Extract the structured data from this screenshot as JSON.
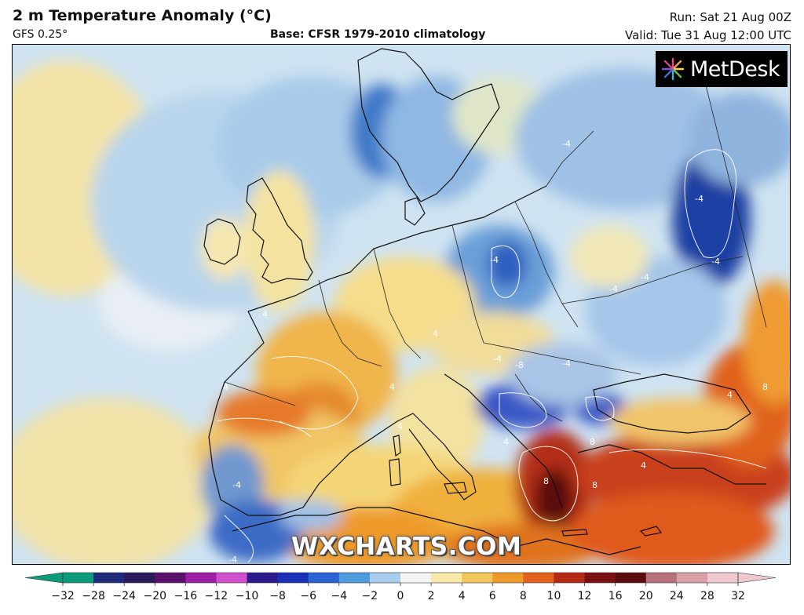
{
  "header": {
    "title": "2 m Temperature Anomaly (°C)",
    "model": "GFS 0.25°",
    "base": "Base: CFSR 1979-2010 climatology",
    "run": "Run: Sat 21 Aug 00Z",
    "valid": "Valid: Tue 31 Aug 12:00 UTC"
  },
  "logo": {
    "text": "MetDesk"
  },
  "watermark": {
    "text": "WXCHARTS.COM"
  },
  "map": {
    "contour_labels": [
      {
        "text": "-4"
      },
      {
        "text": "-4"
      },
      {
        "text": "-4"
      },
      {
        "text": "-4"
      },
      {
        "text": "-4"
      },
      {
        "text": "-4"
      },
      {
        "text": "-4"
      },
      {
        "text": "-4"
      },
      {
        "text": "-4"
      },
      {
        "text": "-4"
      },
      {
        "text": "-8"
      },
      {
        "text": "4"
      },
      {
        "text": "4"
      },
      {
        "text": "4"
      },
      {
        "text": "4"
      },
      {
        "text": "4"
      },
      {
        "text": "4"
      },
      {
        "text": "4"
      },
      {
        "text": "4"
      },
      {
        "text": "8"
      },
      {
        "text": "8"
      },
      {
        "text": "8"
      },
      {
        "text": "8"
      }
    ]
  },
  "colorbar": {
    "ticks": [
      "−32",
      "−28",
      "−24",
      "−20",
      "−16",
      "−12",
      "−10",
      "−8",
      "−6",
      "−4",
      "−2",
      "0",
      "2",
      "4",
      "6",
      "8",
      "10",
      "12",
      "16",
      "20",
      "24",
      "28",
      "32"
    ],
    "colors": [
      "#0c9b7a",
      "#1e2a7a",
      "#2a1a5c",
      "#5a0f6a",
      "#9c1fa6",
      "#d14fcf",
      "#2a1a8c",
      "#1a2fb8",
      "#2a63d6",
      "#4f9be0",
      "#a8cdee",
      "#f4f4f4",
      "#f7e9a8",
      "#f3c55a",
      "#ee9a2a",
      "#e0621c",
      "#b52a14",
      "#7a1010",
      "#5c0c0c",
      "#b8707a",
      "#d9a0aa",
      "#efc9cf"
    ]
  }
}
